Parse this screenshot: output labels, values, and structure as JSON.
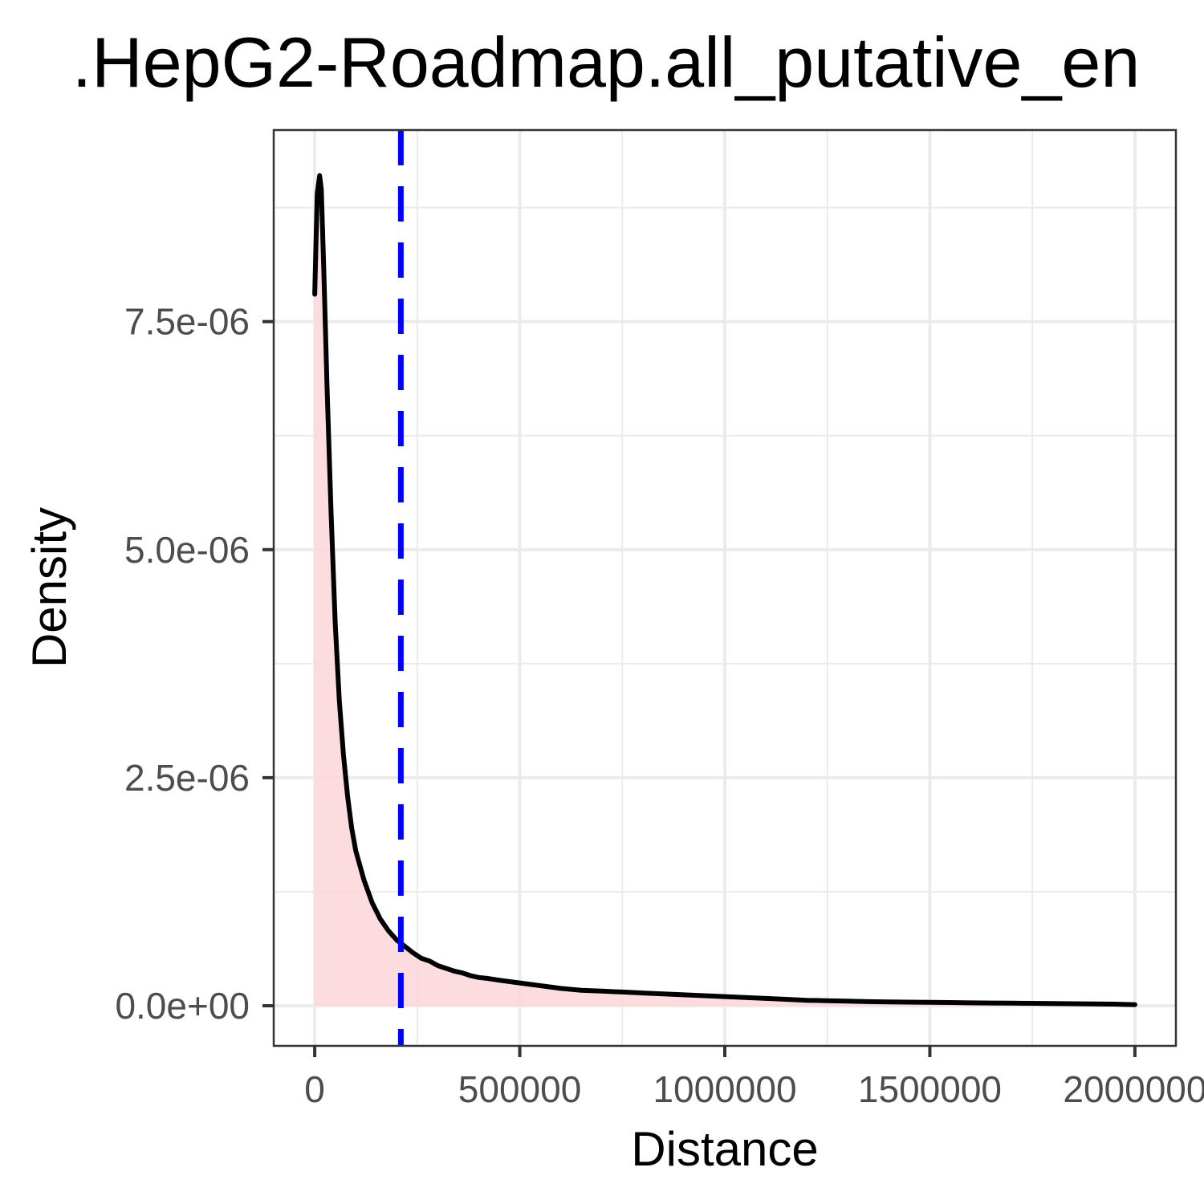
{
  "chart_data": {
    "type": "area",
    "title": ".HepG2-Roadmap.all_putative_en",
    "xlabel": "Distance",
    "ylabel": "Density",
    "xlim": [
      -100000,
      2100000
    ],
    "ylim": [
      -4.4e-07,
      9.6e-06
    ],
    "x_ticks": [
      0,
      500000,
      1000000,
      1500000,
      2000000
    ],
    "x_tick_labels": [
      "0",
      "500000",
      "1000000",
      "1500000",
      "2000000"
    ],
    "y_ticks": [
      0,
      2.5e-06,
      5e-06,
      7.5e-06
    ],
    "y_tick_labels": [
      "0.0e+00",
      "2.5e-06",
      "5.0e-06",
      "7.5e-06"
    ],
    "grid": true,
    "series": [
      {
        "x": [
          0,
          6000,
          12000,
          16000,
          22000,
          30000,
          40000,
          50000,
          60000,
          70000,
          80000,
          90000,
          100000,
          120000,
          140000,
          160000,
          180000,
          200000,
          220000,
          240000,
          260000,
          280000,
          300000,
          320000,
          340000,
          360000,
          380000,
          400000,
          420000,
          450000,
          500000,
          550000,
          600000,
          650000,
          700000,
          750000,
          800000,
          850000,
          900000,
          950000,
          1000000,
          1050000,
          1100000,
          1150000,
          1200000,
          1250000,
          1300000,
          1350000,
          1400000,
          1450000,
          1500000,
          1550000,
          1600000,
          1650000,
          1700000,
          1750000,
          1800000,
          1850000,
          1900000,
          1950000,
          2000000
        ],
        "y": [
          7.8e-06,
          8.9e-06,
          9.1e-06,
          8.95e-06,
          8.1e-06,
          6.8e-06,
          5.4e-06,
          4.2e-06,
          3.35e-06,
          2.75e-06,
          2.3e-06,
          1.95e-06,
          1.7e-06,
          1.38e-06,
          1.13e-06,
          9.5e-07,
          8.2e-07,
          7.2e-07,
          6.5e-07,
          5.8e-07,
          5.2e-07,
          4.9e-07,
          4.4e-07,
          4.1e-07,
          3.8e-07,
          3.6e-07,
          3.3e-07,
          3.1e-07,
          3e-07,
          2.8e-07,
          2.5e-07,
          2.2e-07,
          1.9e-07,
          1.7e-07,
          1.6e-07,
          1.5e-07,
          1.4e-07,
          1.3e-07,
          1.2e-07,
          1.1e-07,
          1e-07,
          9e-08,
          8e-08,
          7e-08,
          6e-08,
          5.5e-08,
          5e-08,
          4.5e-08,
          4.2e-08,
          4e-08,
          3.8e-08,
          3.5e-08,
          3.2e-08,
          3e-08,
          2.8e-08,
          2.6e-08,
          2.4e-08,
          2.2e-08,
          2e-08,
          1.8e-08,
          1.2e-08
        ]
      }
    ],
    "vline": {
      "x": 210000,
      "color": "#0000ff",
      "style": "dashed"
    },
    "line_color": "#000000",
    "fill_color": "#fcd6d8"
  }
}
